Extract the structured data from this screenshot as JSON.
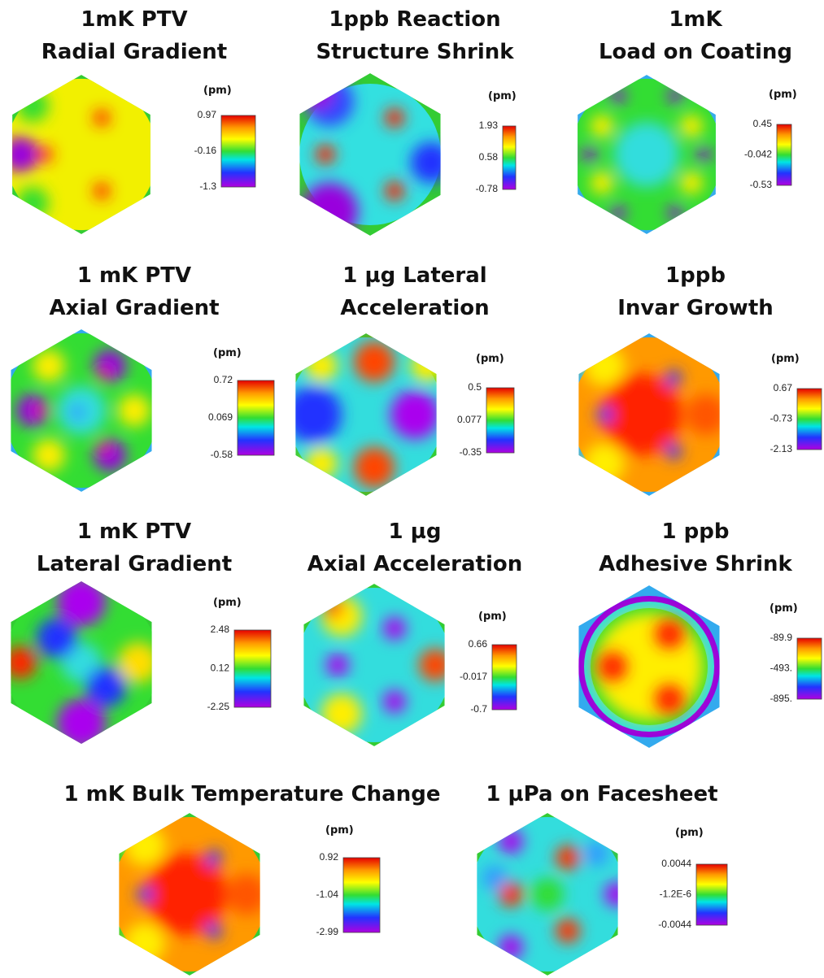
{
  "panels": [
    {
      "title": [
        "1mK PTV",
        "Radial Gradient"
      ],
      "unit": "(pm)",
      "scale": [
        "0.97",
        "-0.16",
        "-1.3"
      ]
    },
    {
      "title": [
        "1ppb Reaction",
        "Structure Shrink"
      ],
      "unit": "(pm)",
      "scale": [
        "1.93",
        "0.58",
        "-0.78"
      ]
    },
    {
      "title": [
        "1mK",
        "Load on Coating"
      ],
      "unit": "(pm)",
      "scale": [
        "0.45",
        "-0.042",
        "-0.53"
      ]
    },
    {
      "title": [
        "1 mK PTV",
        "Axial Gradient"
      ],
      "unit": "(pm)",
      "scale": [
        "0.72",
        "0.069",
        "-0.58"
      ]
    },
    {
      "title": [
        "1 µg Lateral",
        "Acceleration"
      ],
      "unit": "(pm)",
      "scale": [
        "0.5",
        "0.077",
        "-0.35"
      ]
    },
    {
      "title": [
        "1ppb",
        "Invar Growth"
      ],
      "unit": "(pm)",
      "scale": [
        "0.67",
        "-0.73",
        "-2.13"
      ]
    },
    {
      "title": [
        "1 mK PTV",
        "Lateral Gradient"
      ],
      "unit": "(pm)",
      "scale": [
        "2.48",
        "0.12",
        "-2.25"
      ]
    },
    {
      "title": [
        "1 µg",
        "Axial Acceleration"
      ],
      "unit": "(pm)",
      "scale": [
        "0.66",
        "-0.017",
        "-0.7"
      ]
    },
    {
      "title": [
        "1 ppb",
        "Adhesive Shrink"
      ],
      "unit": "(pm)",
      "scale": [
        "-89.9",
        "-493.",
        "-895."
      ]
    },
    {
      "title": [
        "1 mK Bulk Temperature Change"
      ],
      "unit": "(pm)",
      "scale": [
        "0.92",
        "-1.04",
        "-2.99"
      ]
    },
    {
      "title": [
        "1 µPa on Facesheet"
      ],
      "unit": "(pm)",
      "scale": [
        "0.0044",
        "-1.2E-6",
        "-0.0044"
      ]
    }
  ]
}
